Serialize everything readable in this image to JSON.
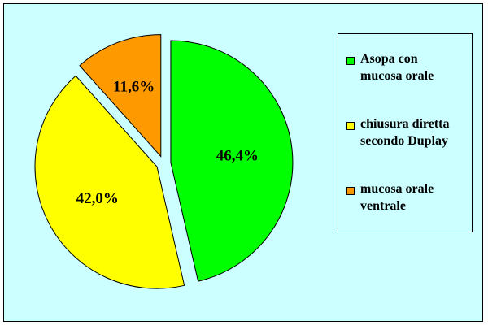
{
  "chart_data": {
    "type": "pie",
    "labels": [
      "Asopa con mucosa orale",
      "chiusura diretta secondo Duplay",
      "mucosa orale ventrale"
    ],
    "legend_lines": [
      [
        "Asopa con",
        "mucosa orale"
      ],
      [
        "chiusura diretta",
        "secondo Duplay"
      ],
      [
        "mucosa orale",
        "ventrale"
      ]
    ],
    "values": [
      46.4,
      42.0,
      11.6
    ],
    "value_labels": [
      "46,4%",
      "42,0%",
      "11,6%"
    ],
    "colors": [
      "#00ff00",
      "#ffff00",
      "#ff9900"
    ],
    "exploded": true,
    "start_angle": "12 o'clock, clockwise",
    "legend_position": "right",
    "background_color": "#ccffff"
  }
}
